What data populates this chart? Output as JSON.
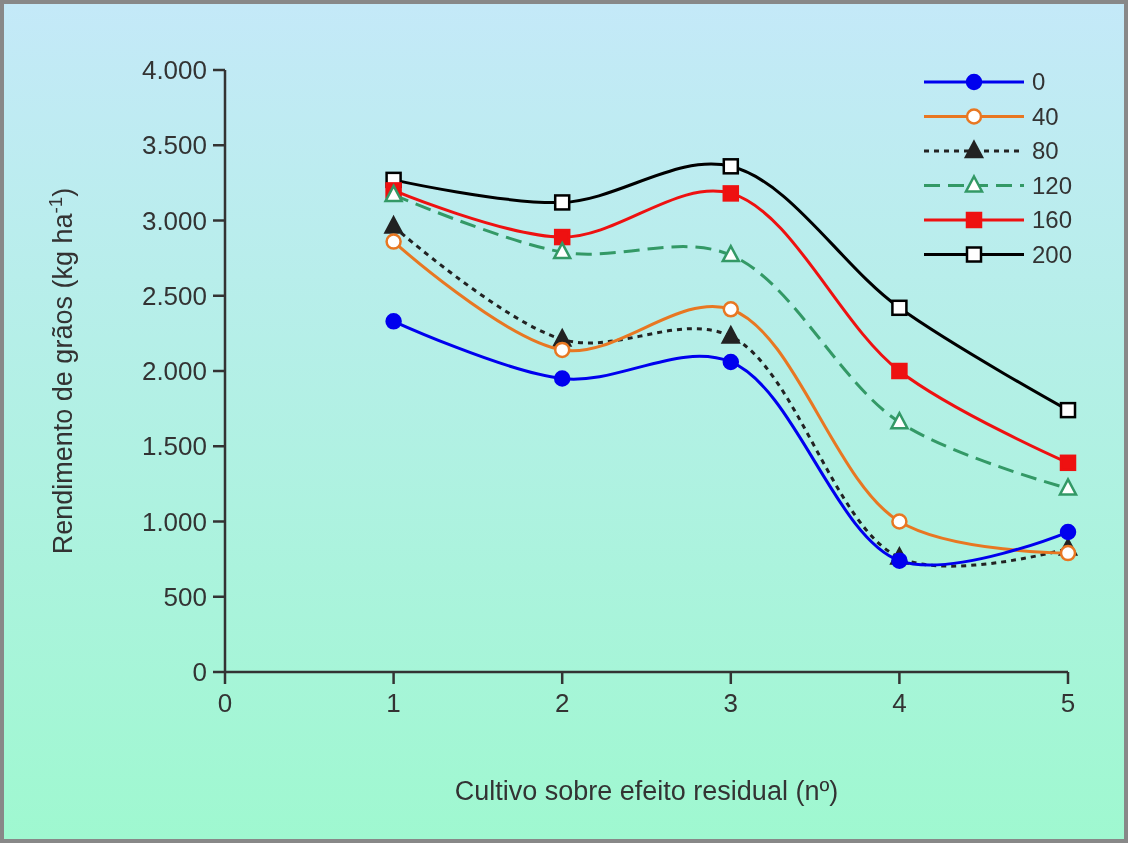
{
  "chart_data": {
    "type": "line",
    "xlabel": "Cultivo sobre efeito residual (nº)",
    "ylabel": "Rendimento de grãos (kg ha$^{-1}$)",
    "x": [
      1,
      2,
      3,
      4,
      5
    ],
    "xlim": [
      0,
      5
    ],
    "xticks": [
      0,
      1,
      2,
      3,
      4,
      5
    ],
    "ylim": [
      0,
      4000
    ],
    "yticks": [
      0,
      500,
      {
        "value": 1000,
        "label": "1.000"
      },
      {
        "value": 1500,
        "label": "1.500"
      },
      {
        "value": 2000,
        "label": "2.000"
      },
      {
        "value": 2500,
        "label": "2.500"
      },
      {
        "value": 3000,
        "label": "3.000"
      },
      {
        "value": 3500,
        "label": "3.500"
      },
      {
        "value": 4000,
        "label": "4.000"
      }
    ],
    "grid": false,
    "legend": "top right",
    "series": [
      {
        "name": "0",
        "color": "#0000ee",
        "marker": "circle",
        "line_style": "solid",
        "values": [
          2330,
          1950,
          2060,
          740,
          930
        ]
      },
      {
        "name": "40",
        "color": "#e87722",
        "marker": "circle",
        "line_style": "solid",
        "values": [
          2860,
          2140,
          2410,
          1000,
          790
        ]
      },
      {
        "name": "80",
        "color": "#222222",
        "marker": "triangle",
        "line_style": "dotted",
        "values": [
          2960,
          2210,
          2230,
          760,
          820
        ]
      },
      {
        "name": "120",
        "color": "#339966",
        "marker": "triangle",
        "line_style": "dashed",
        "values": [
          3170,
          2790,
          2770,
          1660,
          1220
        ]
      },
      {
        "name": "160",
        "color": "#ee1111",
        "marker": "square",
        "line_style": "solid",
        "values": [
          3200,
          2890,
          3180,
          2000,
          1390
        ]
      },
      {
        "name": "200",
        "color": "#000000",
        "marker": "square",
        "line_style": "solid",
        "values": [
          3270,
          3120,
          3360,
          2420,
          1740
        ]
      }
    ]
  }
}
